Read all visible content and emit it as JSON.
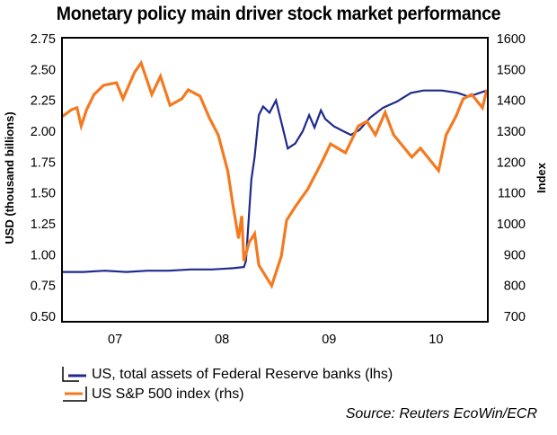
{
  "chart_data": {
    "type": "line",
    "title": "Monetary policy main driver stock market performance",
    "xlabel": "",
    "ylabel_left": "USD (thousand billions)",
    "ylabel_right": "Index",
    "x_range": [
      2006.5,
      2010.48
    ],
    "x_tick_labels": [
      {
        "label": "07",
        "center": 2007.5
      },
      {
        "label": "08",
        "center": 2008.5
      },
      {
        "label": "09",
        "center": 2009.5
      },
      {
        "label": "10",
        "center": 2010.5
      }
    ],
    "ylim_left": [
      0.5,
      2.75
    ],
    "yticks_left": [
      "2.75",
      "2.50",
      "2.25",
      "2.00",
      "1.75",
      "1.50",
      "1.25",
      "1.00",
      "0.75",
      "0.50"
    ],
    "ylim_right": [
      700,
      1600
    ],
    "yticks_right": [
      "1600",
      "1500",
      "1400",
      "1300",
      "1200",
      "1100",
      "1000",
      "900",
      "800",
      "700"
    ],
    "grid": false,
    "legend_position": "bottom-left",
    "series": [
      {
        "name": "US, total assets of Federal Reserve banks (lhs)",
        "axis": "left",
        "color": "#1f2a8c",
        "x": [
          2006.5,
          2006.7,
          2006.9,
          2007.1,
          2007.3,
          2007.5,
          2007.7,
          2007.9,
          2008.1,
          2008.2,
          2008.22,
          2008.25,
          2008.27,
          2008.3,
          2008.34,
          2008.38,
          2008.44,
          2008.5,
          2008.56,
          2008.61,
          2008.68,
          2008.75,
          2008.81,
          2008.86,
          2008.92,
          2008.96,
          2009.04,
          2009.13,
          2009.2,
          2009.28,
          2009.38,
          2009.5,
          2009.63,
          2009.76,
          2009.88,
          2010.05,
          2010.2,
          2010.3,
          2010.47
        ],
        "values": [
          0.86,
          0.86,
          0.87,
          0.86,
          0.87,
          0.87,
          0.88,
          0.88,
          0.89,
          0.9,
          0.95,
          1.35,
          1.61,
          1.79,
          2.13,
          2.2,
          2.15,
          2.25,
          2.04,
          1.86,
          1.9,
          2.0,
          2.13,
          2.03,
          2.17,
          2.1,
          2.04,
          2.0,
          1.97,
          2.01,
          2.11,
          2.19,
          2.24,
          2.31,
          2.33,
          2.33,
          2.31,
          2.28,
          2.33
        ]
      },
      {
        "name": "US S&P 500 index (rhs)",
        "axis": "right",
        "color": "#f47a20",
        "x": [
          2006.5,
          2006.59,
          2006.64,
          2006.68,
          2006.73,
          2006.8,
          2006.89,
          2007.01,
          2007.07,
          2007.18,
          2007.24,
          2007.34,
          2007.42,
          2007.51,
          2007.62,
          2007.68,
          2007.79,
          2007.88,
          2007.96,
          2008.05,
          2008.1,
          2008.15,
          2008.18,
          2008.2,
          2008.25,
          2008.3,
          2008.34,
          2008.46,
          2008.55,
          2008.6,
          2008.68,
          2008.8,
          2008.93,
          2009.01,
          2009.15,
          2009.27,
          2009.35,
          2009.43,
          2009.52,
          2009.6,
          2009.77,
          2009.85,
          2010.02,
          2010.09,
          2010.18,
          2010.25,
          2010.33,
          2010.43,
          2010.47
        ],
        "values": [
          1347,
          1370,
          1376,
          1317,
          1370,
          1419,
          1449,
          1457,
          1405,
          1492,
          1521,
          1419,
          1478,
          1384,
          1405,
          1434,
          1414,
          1341,
          1288,
          1170,
          1055,
          953,
          1025,
          880,
          940,
          968,
          866,
          799,
          895,
          1012,
          1055,
          1114,
          1201,
          1259,
          1230,
          1317,
          1332,
          1288,
          1361,
          1288,
          1216,
          1245,
          1172,
          1288,
          1347,
          1405,
          1419,
          1376,
          1434
        ]
      }
    ]
  },
  "legend": {
    "items": [
      {
        "label": "US, total assets of Federal Reserve banks (lhs)",
        "color": "#1f2a8c",
        "axis": "left"
      },
      {
        "label": "US S&P 500 index (rhs)",
        "color": "#f47a20",
        "axis": "right"
      }
    ]
  },
  "source": "Source: Reuters EcoWin/ECR"
}
